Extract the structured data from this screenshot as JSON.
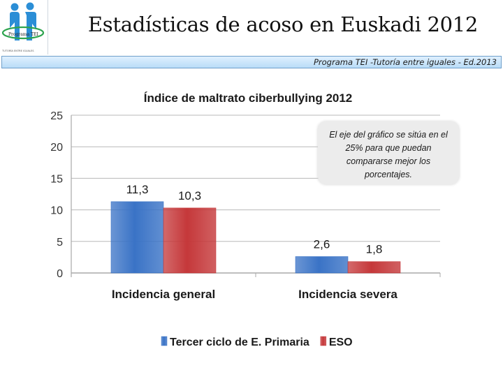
{
  "header": {
    "title": "Estadísticas de acoso en Euskadi 2012",
    "subtitle": "Programa TEI -Tutoría entre iguales - Ed.2013",
    "logo_text": "Programa TEI",
    "logo_caption": "TUTORÍA ENTRE IGUALES"
  },
  "note": "El eje del gráfico se sitúa en el 25% para que puedan compararse mejor los porcentajes.",
  "colors": {
    "primaria": "#3a73c6",
    "eso": "#c5383a",
    "accent": "#2b8ed6",
    "logo_green": "#2ea44f"
  },
  "chart_data": {
    "type": "bar",
    "title": "Índice de maltrato ciberbullying 2012",
    "categories": [
      "Incidencia general",
      "Incidencia severa"
    ],
    "series": [
      {
        "name": "Tercer ciclo de E. Primaria",
        "values": [
          11.3,
          2.6
        ],
        "labels": [
          "11,3",
          "2,6"
        ],
        "color": "#3a73c6"
      },
      {
        "name": "ESO",
        "values": [
          10.3,
          1.8
        ],
        "labels": [
          "10,3",
          "1,8"
        ],
        "color": "#c5383a"
      }
    ],
    "yticks": [
      0,
      5,
      10,
      15,
      20,
      25
    ],
    "ylim": [
      0,
      25
    ],
    "grid": true,
    "legend": "bottom"
  }
}
